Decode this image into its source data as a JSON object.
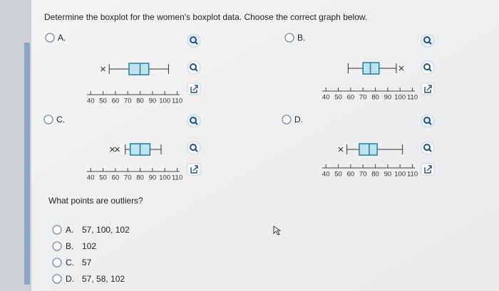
{
  "question": "Determine the boxplot for the women's boxplot data. Choose the correct graph below.",
  "xlim": [
    37,
    112
  ],
  "xticks": [
    40,
    50,
    60,
    70,
    80,
    90,
    100,
    110
  ],
  "options": [
    {
      "letter": "A.",
      "plot": {
        "outliers": [
          50
        ],
        "min": 55,
        "q1": 71,
        "median": 80,
        "q3": 87,
        "max": 103
      }
    },
    {
      "letter": "B.",
      "plot": {
        "outliers": [
          101
        ],
        "min": 58,
        "q1": 70,
        "median": 76,
        "q3": 83,
        "max": 97
      }
    },
    {
      "letter": "C.",
      "plot": {
        "outliers": [
          57.5,
          61.5
        ],
        "min": 68,
        "q1": 72,
        "median": 80,
        "q3": 88,
        "max": 97
      }
    },
    {
      "letter": "D.",
      "plot": {
        "outliers": [
          52
        ],
        "min": 57,
        "q1": 67,
        "median": 75,
        "q3": 81.5,
        "max": 102
      }
    }
  ],
  "followup": {
    "question": "What points are outliers?",
    "choices": [
      {
        "letter": "A.",
        "text": "57, 100, 102"
      },
      {
        "letter": "B.",
        "text": "102"
      },
      {
        "letter": "C.",
        "text": "57"
      },
      {
        "letter": "D.",
        "text": "57, 58, 102"
      }
    ]
  }
}
